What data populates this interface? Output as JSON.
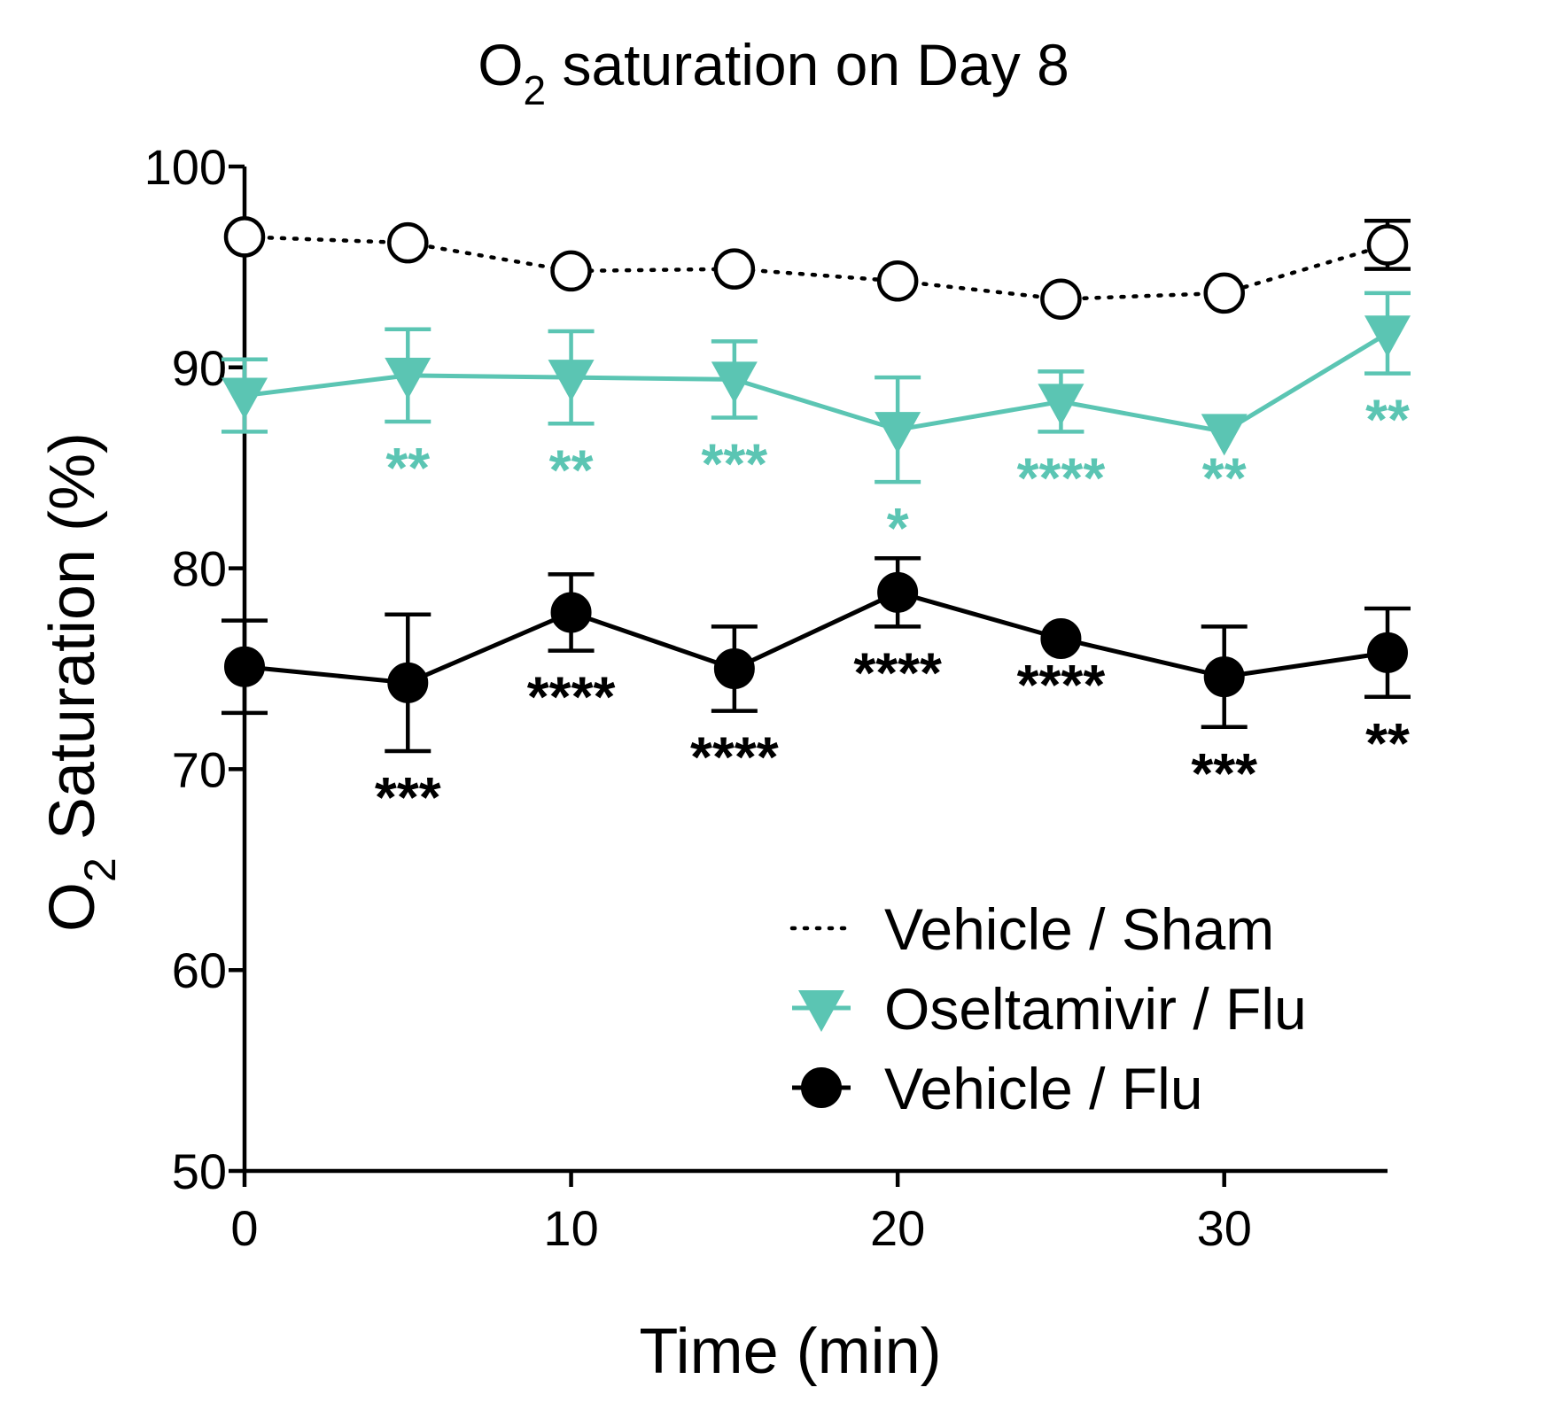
{
  "chart_data": {
    "type": "line",
    "title": "O",
    "title_subscript": "2",
    "title_rest": " saturation on Day 8",
    "xlabel": "Time (min)",
    "ylabel_main": "O",
    "ylabel_subscript": "2",
    "ylabel_rest": " Saturation (%)",
    "xlim": [
      0,
      35
    ],
    "ylim": [
      50,
      100
    ],
    "xticks": [
      0,
      10,
      20,
      30
    ],
    "xtick_labels": [
      "0",
      "10",
      "20",
      "30"
    ],
    "yticks": [
      50,
      60,
      70,
      80,
      90,
      100
    ],
    "ytick_labels": [
      "50",
      "60",
      "70",
      "80",
      "90",
      "100"
    ],
    "grid": false,
    "legend_position": "bottom-right",
    "x": [
      0,
      5,
      10,
      15,
      20,
      25,
      30,
      35
    ],
    "series": [
      {
        "name": "Vehicle / Sham",
        "color": "#000000",
        "line_style": "dotted",
        "marker": "open-circle",
        "values": [
          96.5,
          96.2,
          94.8,
          94.9,
          94.3,
          93.4,
          93.7,
          96.1
        ],
        "error": [
          0,
          0,
          0,
          0,
          0,
          0,
          0,
          1.2
        ],
        "annotations": []
      },
      {
        "name": "Oseltamivir / Flu",
        "color": "#5bc5b3",
        "line_style": "solid",
        "marker": "down-triangle",
        "values": [
          88.6,
          89.6,
          89.5,
          89.4,
          86.9,
          88.3,
          86.8,
          91.7
        ],
        "error": [
          1.8,
          2.3,
          2.3,
          1.9,
          2.6,
          1.5,
          0,
          2.0
        ],
        "annotations": [
          "",
          "**",
          "**",
          "***",
          "*",
          "****",
          "**",
          "**"
        ]
      },
      {
        "name": "Vehicle / Flu",
        "color": "#000000",
        "line_style": "solid",
        "marker": "filled-circle",
        "values": [
          75.1,
          74.3,
          77.8,
          75.0,
          78.8,
          76.5,
          74.6,
          75.8
        ],
        "error": [
          2.3,
          3.4,
          1.9,
          2.1,
          1.7,
          0,
          2.5,
          2.2
        ],
        "annotations": [
          "",
          "***",
          "****",
          "****",
          "****",
          "****",
          "***",
          "**"
        ]
      }
    ]
  }
}
